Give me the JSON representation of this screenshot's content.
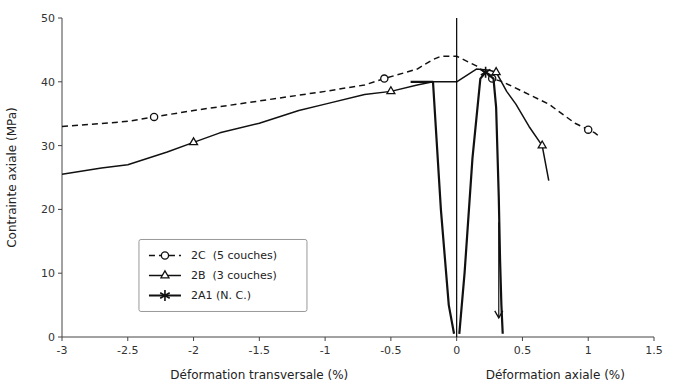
{
  "chart_data": {
    "type": "line",
    "xlabel": [
      "Déformation transversale (%)",
      "Déformation axiale (%)"
    ],
    "ylabel": "Contrainte axiale (MPa)",
    "xlim": [
      -3.0,
      1.5
    ],
    "ylim": [
      0,
      50
    ],
    "xticks": [
      -3.0,
      -2.5,
      -2.0,
      -1.5,
      -1.0,
      -0.5,
      0.0,
      0.5,
      1.0,
      1.5
    ],
    "yticks": [
      0,
      10,
      20,
      30,
      40,
      50
    ],
    "grid": false,
    "legend": "lower left",
    "series": [
      {
        "name": "2C  (5 couches)",
        "color": "#111111",
        "line_style": "dashed",
        "marker": "circle",
        "x": [
          -3.0,
          -2.8,
          -2.5,
          -2.3,
          -2.0,
          -1.5,
          -1.0,
          -0.7,
          -0.55,
          -0.3,
          -0.18,
          -0.12,
          0.0,
          0.15,
          0.27,
          0.35,
          0.5,
          0.7,
          0.9,
          1.0,
          1.05,
          1.08
        ],
        "values": [
          33.0,
          33.3,
          33.8,
          34.5,
          35.5,
          37.0,
          38.5,
          39.5,
          40.5,
          42.0,
          43.5,
          44.0,
          44.0,
          42.5,
          40.5,
          40.0,
          38.5,
          36.5,
          33.5,
          32.5,
          32.0,
          31.5
        ],
        "marker_x": [
          -2.3,
          -0.55,
          0.27,
          1.0
        ],
        "marker_y": [
          34.5,
          40.5,
          40.5,
          32.5
        ]
      },
      {
        "name": "2B  (3 couches)",
        "color": "#111111",
        "line_style": "solid",
        "marker": "triangle",
        "x": [
          -3.0,
          -2.7,
          -2.5,
          -2.2,
          -2.0,
          -1.8,
          -1.5,
          -1.2,
          -1.0,
          -0.7,
          -0.5,
          -0.3,
          -0.18,
          -0.12,
          0.0,
          0.15,
          0.25,
          0.3,
          0.38,
          0.45,
          0.55,
          0.65,
          0.7
        ],
        "values": [
          25.5,
          26.5,
          27.0,
          29.0,
          30.5,
          32.0,
          33.5,
          35.5,
          36.5,
          38.0,
          38.5,
          39.5,
          40.0,
          40.0,
          40.0,
          42.0,
          41.8,
          41.5,
          38.5,
          36.5,
          33.0,
          30.0,
          24.5
        ],
        "marker_x": [
          -2.0,
          -0.5,
          0.3,
          0.65
        ],
        "marker_y": [
          30.5,
          38.5,
          41.5,
          30.0
        ]
      },
      {
        "name": "2A1 (N. C.)",
        "color": "#111111",
        "line_style": "solid",
        "marker": "asterisk",
        "x": [
          -0.35,
          -0.25,
          -0.18,
          -0.12,
          -0.06,
          -0.02,
          null,
          0.02,
          0.06,
          0.12,
          0.18,
          0.22,
          0.28,
          0.3,
          0.32,
          0.32,
          0.33,
          0.34,
          0.35
        ],
        "values": [
          40.0,
          40.0,
          40.0,
          20.0,
          5.0,
          0.5,
          null,
          0.5,
          10.0,
          28.0,
          40.5,
          41.5,
          40.5,
          36.0,
          22.0,
          22.0,
          12.0,
          5.0,
          0.5
        ],
        "marker_x": [
          0.22
        ],
        "marker_y": [
          41.5
        ]
      }
    ],
    "vline": 0,
    "arrows": [
      {
        "x": 0.32,
        "y_start": 18.0,
        "y_end": 3.0,
        "color": "#111111"
      }
    ]
  }
}
